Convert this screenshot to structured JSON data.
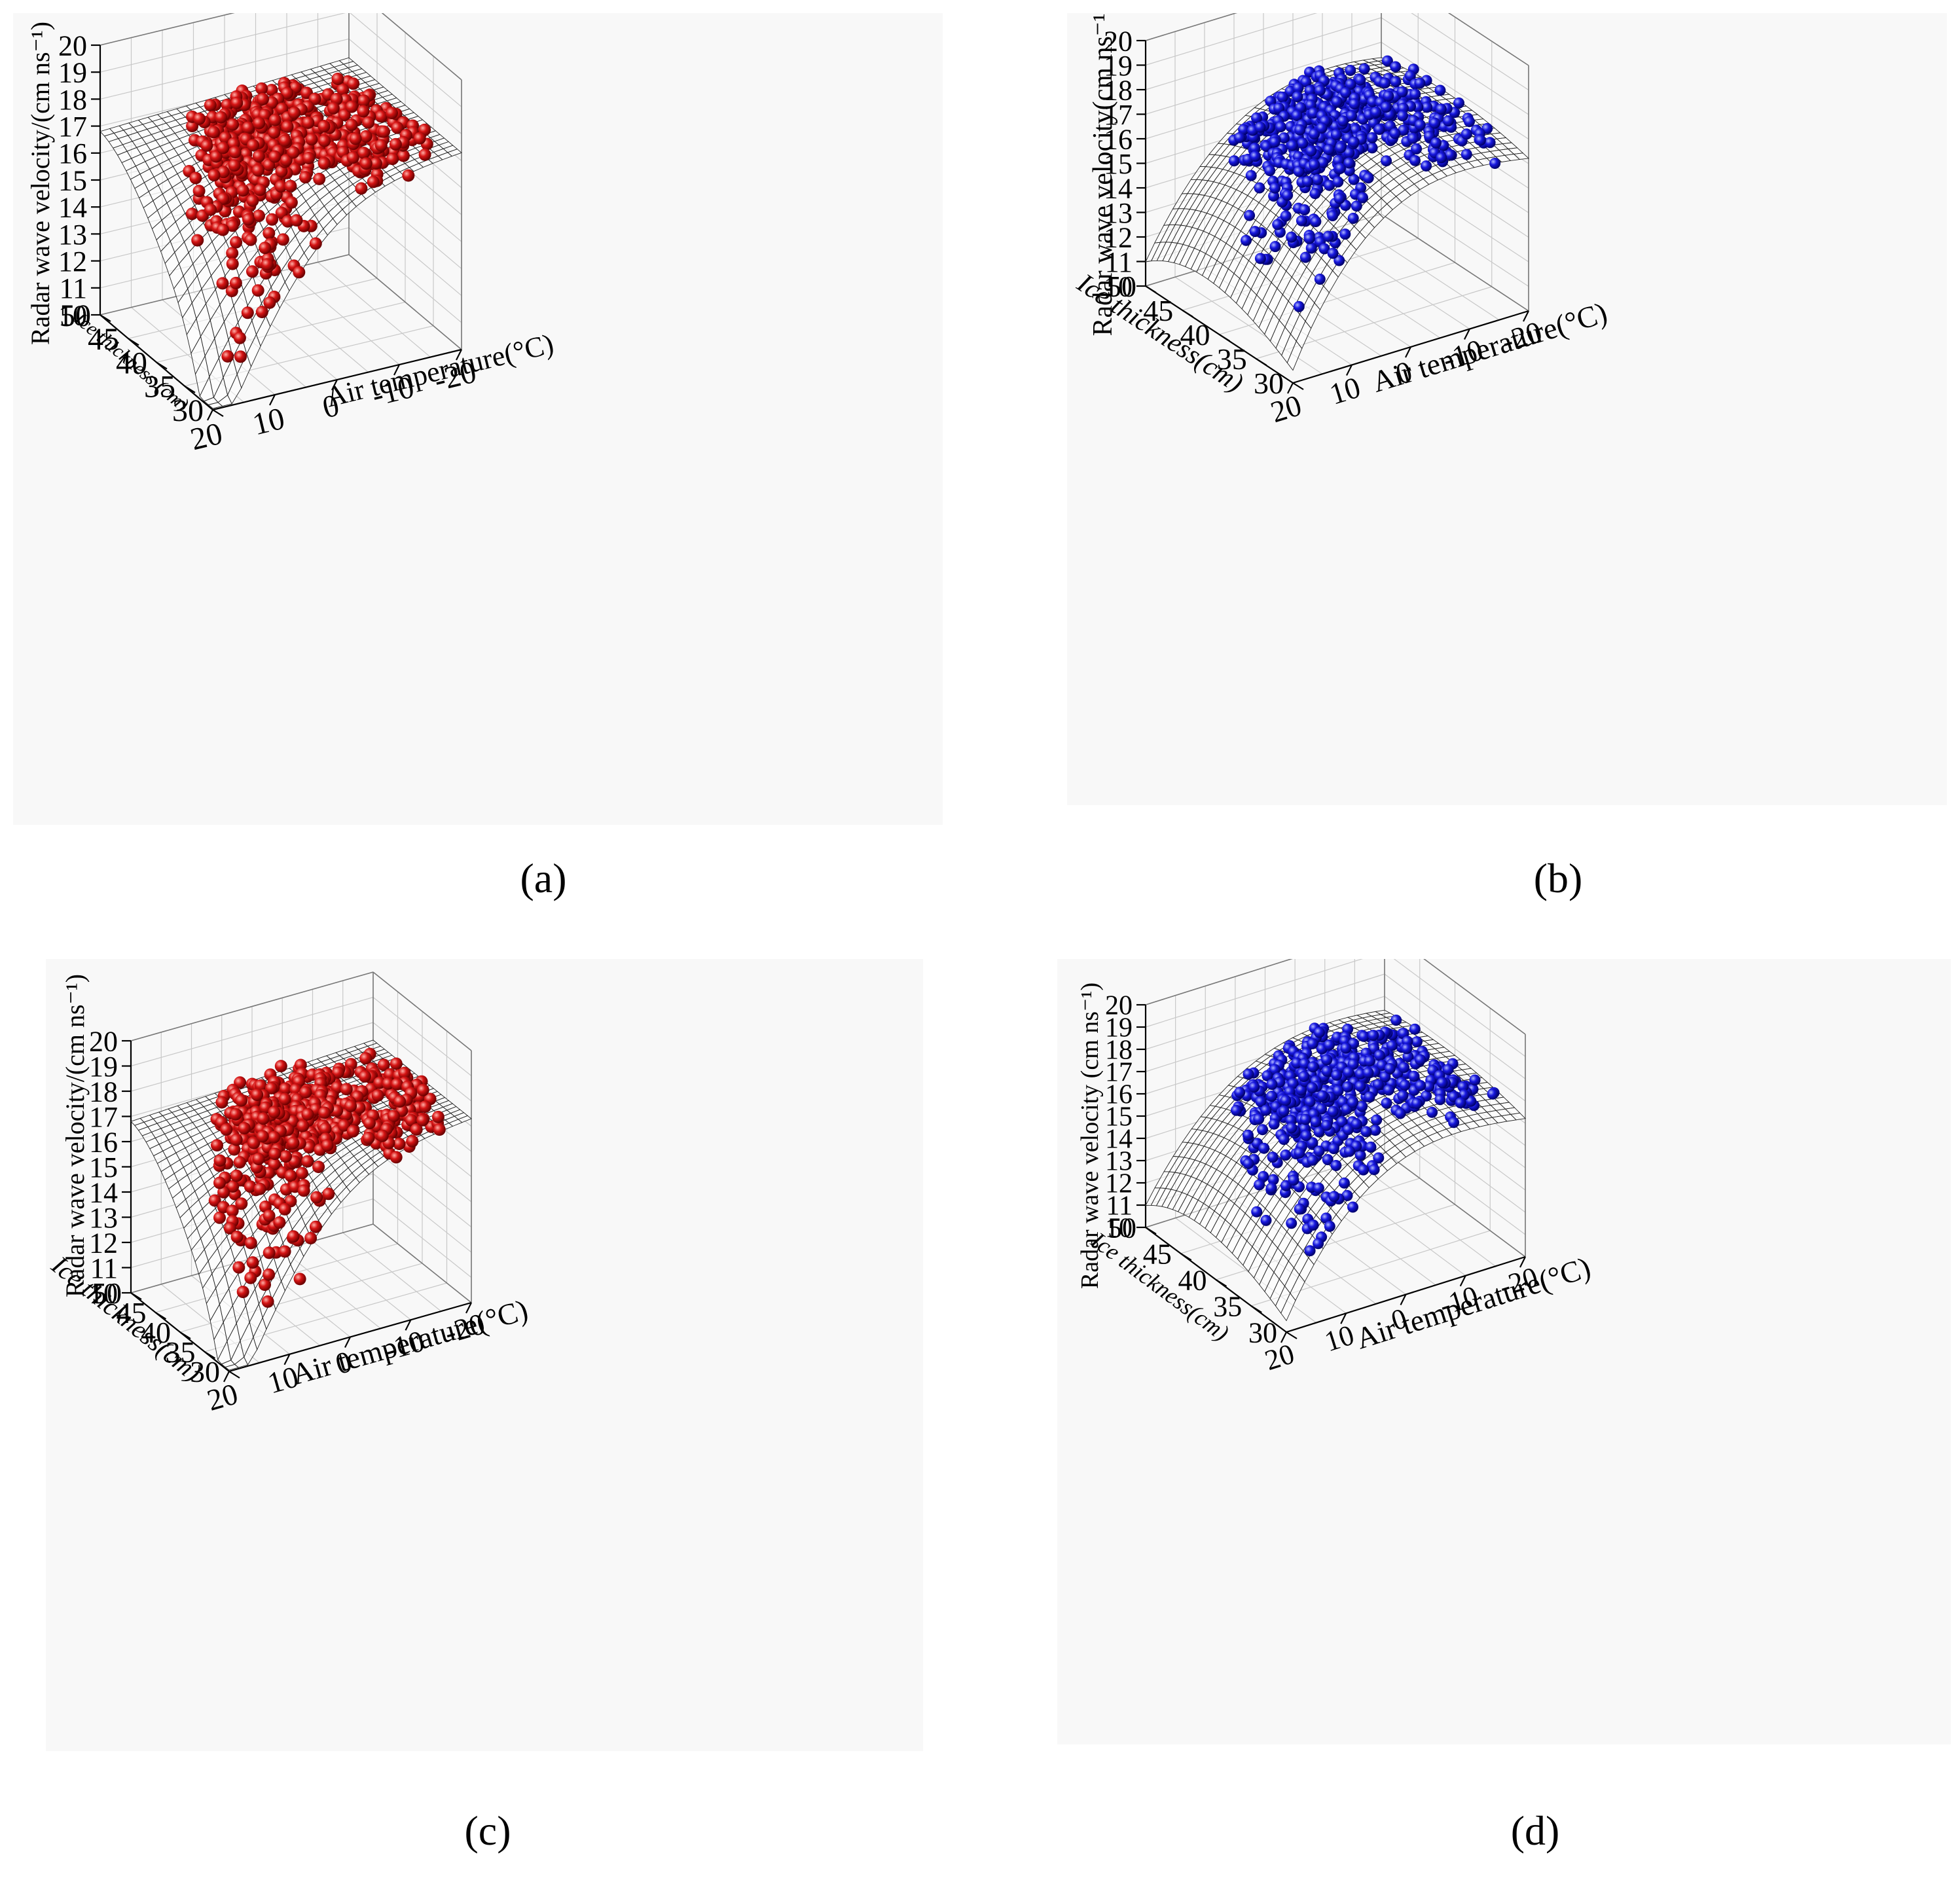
{
  "figure": {
    "panels": [
      {
        "id": "a",
        "caption": "(a)",
        "color": "#cc1111",
        "zlabel": "Radar wave velocity/(cm ns⁻¹)",
        "ylabel": "Ice thickness (cm)",
        "xlabel": "Air temperature(°C)",
        "zticks": [
          "10",
          "11",
          "12",
          "13",
          "14",
          "15",
          "16",
          "17",
          "18",
          "19",
          "20"
        ],
        "yticks": [
          "30",
          "35",
          "40",
          "45",
          "50"
        ],
        "xticks": [
          "20",
          "10",
          "0",
          "-10",
          "-20"
        ]
      },
      {
        "id": "b",
        "caption": "(b)",
        "color": "#1a1acc",
        "zlabel": "Radar wave velocity(cm ns⁻¹)",
        "ylabel": "Ice thickness(cm)",
        "xlabel": "Air temperature(°C)",
        "zticks": [
          "10",
          "11",
          "12",
          "13",
          "14",
          "15",
          "16",
          "17",
          "18",
          "19",
          "20"
        ],
        "yticks": [
          "30",
          "35",
          "40",
          "45",
          "50"
        ],
        "xticks": [
          "20",
          "10",
          "0",
          "-10",
          "-20"
        ]
      },
      {
        "id": "c",
        "caption": "(c)",
        "color": "#cc1111",
        "zlabel": "Radar wave velocity/(cm ns⁻¹)",
        "ylabel": "Ice thickness(cm)",
        "xlabel": "Air temperature(°C)",
        "zticks": [
          "10",
          "11",
          "12",
          "13",
          "14",
          "15",
          "16",
          "17",
          "18",
          "19",
          "20"
        ],
        "yticks": [
          "30",
          "35",
          "40",
          "45",
          "50"
        ],
        "xticks": [
          "20",
          "10",
          "0",
          "-10",
          "-20"
        ]
      },
      {
        "id": "d",
        "caption": "(d)",
        "color": "#1a1acc",
        "zlabel": "Radar wave velocity (cm ns⁻¹)",
        "ylabel": "Ice thickness(cm)",
        "xlabel": "Air temperature(°C)",
        "zticks": [
          "10",
          "11",
          "12",
          "13",
          "14",
          "15",
          "16",
          "17",
          "18",
          "19",
          "20"
        ],
        "yticks": [
          "30",
          "35",
          "40",
          "45",
          "50"
        ],
        "xticks": [
          "20",
          "10",
          "0",
          "-10",
          "-20"
        ]
      }
    ]
  },
  "chart_data": [
    {
      "type": "surface-scatter-3d",
      "panel": "a",
      "xlabel": "Air temperature(°C)",
      "ylabel": "Ice thickness (cm)",
      "zlabel": "Radar wave velocity/(cm ns⁻¹)",
      "xlim": [
        -20,
        20
      ],
      "ylim": [
        30,
        50
      ],
      "zlim": [
        10,
        20
      ],
      "surface_shape": "nonlinear surface: ~17 cm/ns plateau at cold temperatures and thick ice, dropping to ~10 cm/ns at warm temperature / thin ice corner",
      "surface_samples": [
        {
          "t": 20,
          "h": 30,
          "v": 10.3
        },
        {
          "t": 20,
          "h": 50,
          "v": 16.7
        },
        {
          "t": -20,
          "h": 30,
          "v": 16.1
        },
        {
          "t": -20,
          "h": 50,
          "v": 17.3
        },
        {
          "t": 0,
          "h": 40,
          "v": 16.8
        }
      ],
      "marker_color": "red",
      "points_estimated": 600
    },
    {
      "type": "surface-scatter-3d",
      "panel": "b",
      "xlabel": "Air temperature(°C)",
      "ylabel": "Ice thickness(cm)",
      "zlabel": "Radar wave velocity(cm ns⁻¹)",
      "xlim": [
        -20,
        20
      ],
      "ylim": [
        30,
        50
      ],
      "zlim": [
        10,
        20
      ],
      "surface_shape": "dome-shaped surface peaking near ~17.5 cm/ns at mid thickness, low (~10.5 cm/ns) at warm temperature / thin ice corner",
      "surface_samples": [
        {
          "t": 20,
          "h": 30,
          "v": 10.5
        },
        {
          "t": 20,
          "h": 50,
          "v": 11.9
        },
        {
          "t": -20,
          "h": 30,
          "v": 15.8
        },
        {
          "t": -20,
          "h": 50,
          "v": 16.2
        },
        {
          "t": 0,
          "h": 40,
          "v": 17.5
        }
      ],
      "marker_color": "blue",
      "points_estimated": 600
    },
    {
      "type": "surface-scatter-3d",
      "panel": "c",
      "xlabel": "Air temperature(°C)",
      "ylabel": "Ice thickness(cm)",
      "zlabel": "Radar wave velocity/(cm ns⁻¹)",
      "xlim": [
        -20,
        20
      ],
      "ylim": [
        30,
        50
      ],
      "zlim": [
        10,
        20
      ],
      "surface_shape": "same form as (a)",
      "surface_samples": [
        {
          "t": 20,
          "h": 30,
          "v": 10.3
        },
        {
          "t": 20,
          "h": 50,
          "v": 16.7
        },
        {
          "t": -20,
          "h": 30,
          "v": 16.1
        },
        {
          "t": -20,
          "h": 50,
          "v": 17.3
        },
        {
          "t": 0,
          "h": 40,
          "v": 16.8
        }
      ],
      "marker_color": "red",
      "points_estimated": 650
    },
    {
      "type": "surface-scatter-3d",
      "panel": "d",
      "xlabel": "Air temperature(°C)",
      "ylabel": "Ice thickness(cm)",
      "zlabel": "Radar wave velocity (cm ns⁻¹)",
      "xlim": [
        -20,
        20
      ],
      "ylim": [
        30,
        50
      ],
      "zlim": [
        10,
        20
      ],
      "surface_shape": "same form as (b)",
      "surface_samples": [
        {
          "t": 20,
          "h": 30,
          "v": 10.5
        },
        {
          "t": 20,
          "h": 50,
          "v": 11.9
        },
        {
          "t": -20,
          "h": 30,
          "v": 15.8
        },
        {
          "t": -20,
          "h": 50,
          "v": 16.2
        },
        {
          "t": 0,
          "h": 40,
          "v": 17.5
        }
      ],
      "marker_color": "blue",
      "points_estimated": 650
    }
  ]
}
